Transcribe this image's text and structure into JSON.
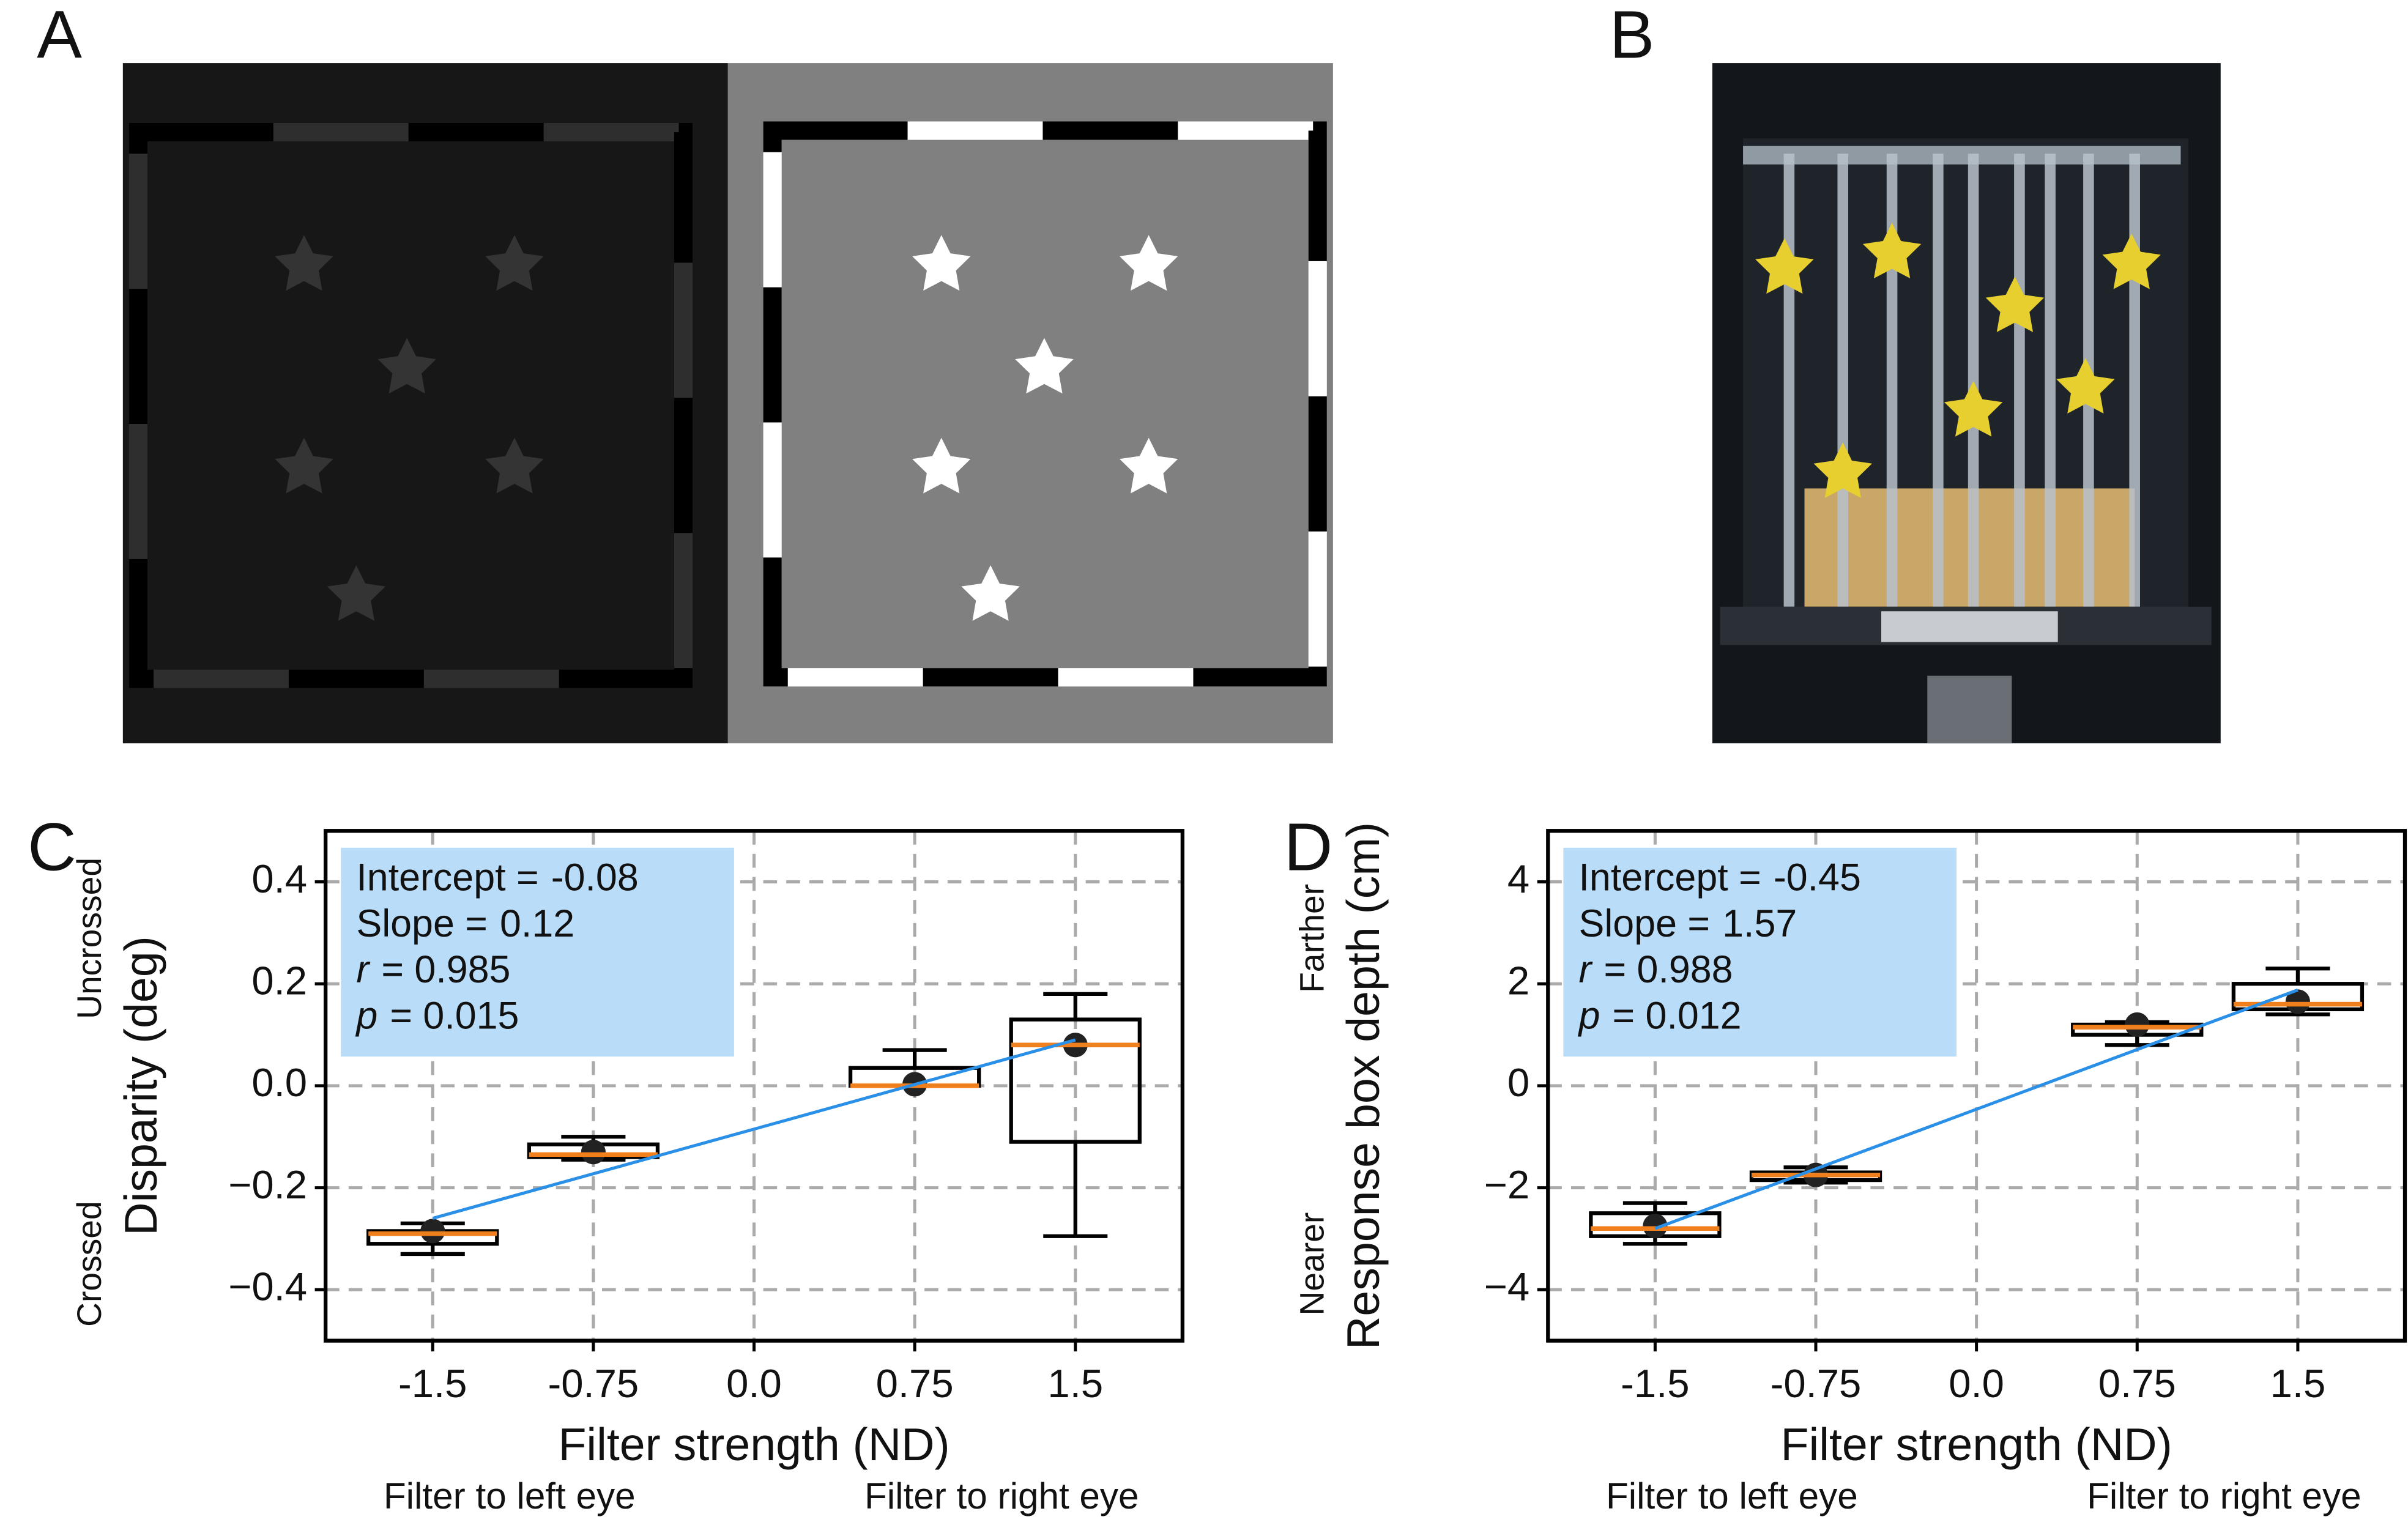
{
  "panel_labels": [
    "A",
    "B",
    "C",
    "D"
  ],
  "chart_data": [
    {
      "type": "box",
      "x": [
        -1.5,
        -0.75,
        0.75,
        1.5
      ],
      "boxes": [
        {
          "low": -0.33,
          "q1": -0.31,
          "median": -0.29,
          "q3": -0.285,
          "high": -0.27,
          "mean": -0.285
        },
        {
          "low": -0.145,
          "q1": -0.14,
          "median": -0.135,
          "q3": -0.115,
          "high": -0.1,
          "mean": -0.13
        },
        {
          "low": 0.0,
          "q1": 0.0,
          "median": 0.0,
          "q3": 0.035,
          "high": 0.07,
          "mean": 0.003
        },
        {
          "low": -0.295,
          "q1": -0.11,
          "median": 0.08,
          "q3": 0.13,
          "high": 0.18,
          "mean": 0.08
        }
      ],
      "fit": {
        "x": [
          -1.5,
          1.5
        ],
        "y": [
          -0.26,
          0.09
        ]
      },
      "xlim": [
        -2,
        2
      ],
      "ylim": [
        -0.5,
        0.5
      ],
      "xticks": [
        -1.5,
        -0.75,
        {
          "value": 0,
          "label": "0.0"
        },
        0.75,
        1.5
      ],
      "yticks": [
        {
          "value": -0.4,
          "label": "−0.4"
        },
        {
          "value": -0.2,
          "label": "−0.2"
        },
        {
          "value": 0,
          "label": "0.0"
        },
        0.2,
        0.4
      ],
      "xlabel": "Filter strength  (ND)",
      "ylabel": "Disparity (deg)",
      "y_top_note": "Uncrossed",
      "y_bottom_note": "Crossed",
      "x_left_note": "Filter to left eye",
      "x_right_note": "Filter to right eye",
      "annotation": [
        {
          "label": "Intercept =",
          "value": "-0.08",
          "italic": false
        },
        {
          "label": "Slope =",
          "value": "0.12",
          "italic": false
        },
        {
          "label": "r",
          "value": "= 0.985",
          "italic": true
        },
        {
          "label": "p",
          "value": "= 0.015",
          "italic": true
        }
      ],
      "grid": true,
      "box_color": "#000000",
      "median_color": "#f07f1e",
      "fit_color": "#2a8fe6",
      "annotation_color": "#b9dcf8"
    },
    {
      "type": "box",
      "x": [
        -1.5,
        -0.75,
        0.75,
        1.5
      ],
      "boxes": [
        {
          "low": -3.1,
          "q1": -2.95,
          "median": -2.8,
          "q3": -2.5,
          "high": -2.3,
          "mean": -2.75
        },
        {
          "low": -1.9,
          "q1": -1.85,
          "median": -1.75,
          "q3": -1.7,
          "high": -1.6,
          "mean": -1.75
        },
        {
          "low": 0.8,
          "q1": 1.0,
          "median": 1.15,
          "q3": 1.2,
          "high": 1.25,
          "mean": 1.2
        },
        {
          "low": 1.4,
          "q1": 1.5,
          "median": 1.6,
          "q3": 2.0,
          "high": 2.3,
          "mean": 1.65
        }
      ],
      "fit": {
        "x": [
          -1.5,
          1.5
        ],
        "y": [
          -2.8,
          1.88
        ]
      },
      "xlim": [
        -2,
        2
      ],
      "ylim": [
        -5,
        5
      ],
      "xticks": [
        -1.5,
        -0.75,
        {
          "value": 0,
          "label": "0.0"
        },
        0.75,
        1.5
      ],
      "yticks": [
        {
          "value": -4,
          "label": "−4"
        },
        {
          "value": -2,
          "label": "−2"
        },
        0,
        2,
        4
      ],
      "xlabel": "Filter strength  (ND)",
      "ylabel": "Response box depth (cm)",
      "y_top_note": "Farther",
      "y_bottom_note": "Nearer",
      "x_left_note": "Filter to left eye",
      "x_right_note": "Filter to right eye",
      "annotation": [
        {
          "label": "Intercept =",
          "value": "-0.45",
          "italic": false
        },
        {
          "label": "Slope =",
          "value": "1.57",
          "italic": false
        },
        {
          "label": "r",
          "value": "= 0.988",
          "italic": true
        },
        {
          "label": "p",
          "value": "= 0.012",
          "italic": true
        }
      ],
      "grid": true,
      "box_color": "#000000",
      "median_color": "#f07f1e",
      "fit_color": "#2a8fe6",
      "annotation_color": "#b9dcf8"
    }
  ]
}
